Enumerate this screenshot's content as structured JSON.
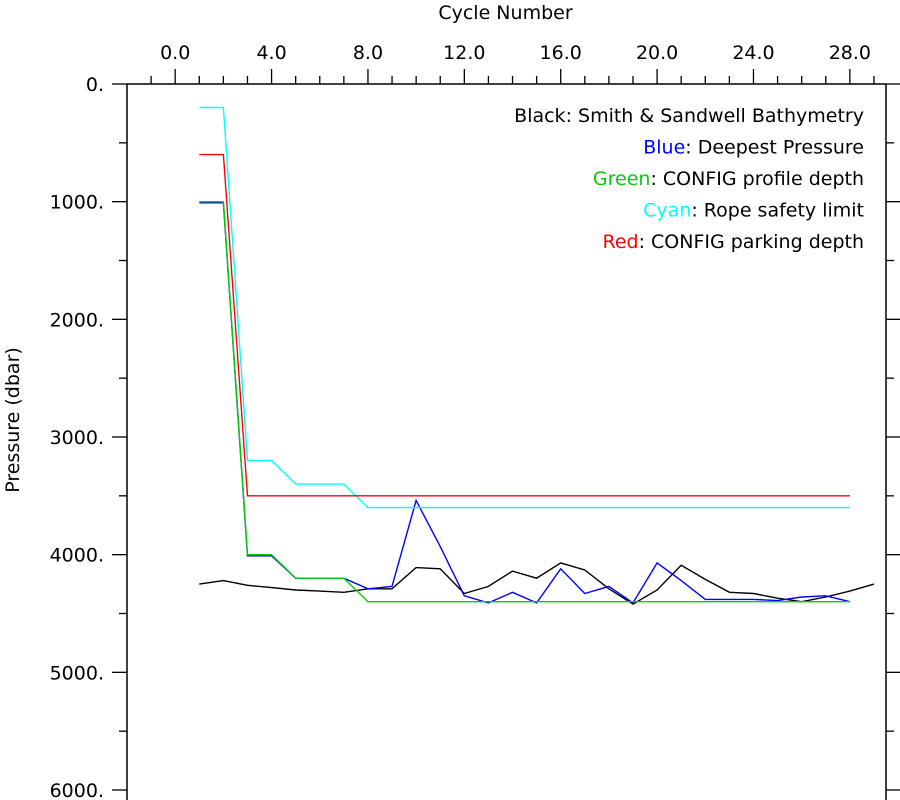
{
  "chart_data": {
    "type": "line",
    "xlabel": "Cycle Number",
    "ylabel": "Pressure (dbar)",
    "xlim": [
      -2.0,
      29.5
    ],
    "ylim": [
      0,
      6000
    ],
    "y_inverted": true,
    "x_ticks": [
      0,
      4,
      8,
      12,
      16,
      20,
      24,
      28
    ],
    "x_tick_labels": [
      "0.0",
      "4.0",
      "8.0",
      "12.0",
      "16.0",
      "20.0",
      "24.0",
      "28.0"
    ],
    "y_ticks": [
      0,
      1000,
      2000,
      3000,
      4000,
      5000,
      6000
    ],
    "y_tick_labels": [
      "0.",
      "1000.",
      "2000.",
      "3000.",
      "4000.",
      "5000.",
      "6000."
    ],
    "legend_position": "top-right",
    "legend": [
      {
        "color_word": "Black",
        "rest": ": Smith & Sandwell Bathymetry",
        "color": "#000000"
      },
      {
        "color_word": "Blue",
        "rest": ": Deepest Pressure",
        "color": "#0000ff"
      },
      {
        "color_word": "Green",
        "rest": ": CONFIG profile depth",
        "color": "#00d000"
      },
      {
        "color_word": "Cyan",
        "rest": ": Rope safety limit",
        "color": "#00ffff"
      },
      {
        "color_word": "Red",
        "rest": ": CONFIG parking depth",
        "color": "#ff0000"
      }
    ],
    "series": [
      {
        "color": "#000000",
        "x": [
          1,
          2,
          3,
          4,
          5,
          6,
          7,
          8,
          9,
          10,
          11,
          12,
          13,
          14,
          15,
          16,
          17,
          18,
          19,
          20,
          21,
          22,
          23,
          24,
          25,
          26,
          27,
          28,
          29
        ],
        "y": [
          4250,
          4220,
          4260,
          4280,
          4300,
          4310,
          4320,
          4290,
          4290,
          4110,
          4120,
          4330,
          4270,
          4140,
          4200,
          4070,
          4130,
          4290,
          4420,
          4300,
          4090,
          4210,
          4320,
          4330,
          4370,
          4400,
          4360,
          4310,
          4250
        ]
      },
      {
        "color": "#0000ff",
        "x": [
          1,
          2,
          3,
          4,
          5,
          6,
          7,
          8,
          9,
          10,
          11,
          12,
          13,
          14,
          15,
          16,
          17,
          18,
          19,
          20,
          21,
          22,
          23,
          24,
          25,
          26,
          27,
          28
        ],
        "y": [
          1010,
          1010,
          4010,
          4010,
          4200,
          4200,
          4200,
          4290,
          4270,
          3540,
          3930,
          4350,
          4410,
          4320,
          4410,
          4120,
          4330,
          4270,
          4410,
          4070,
          4220,
          4380,
          4380,
          4380,
          4390,
          4360,
          4350,
          4400
        ]
      },
      {
        "color": "#00d000",
        "x": [
          1,
          2,
          3,
          4,
          5,
          6,
          7,
          8,
          9,
          10,
          11,
          12,
          13,
          14,
          15,
          16,
          17,
          18,
          19,
          20,
          21,
          22,
          23,
          24,
          25,
          26,
          27,
          28
        ],
        "y": [
          1000,
          1000,
          4000,
          4000,
          4200,
          4200,
          4200,
          4400,
          4400,
          4400,
          4400,
          4400,
          4400,
          4400,
          4400,
          4400,
          4400,
          4400,
          4400,
          4400,
          4400,
          4400,
          4400,
          4400,
          4400,
          4400,
          4400,
          4400
        ]
      },
      {
        "color": "#00ffff",
        "x": [
          1,
          2,
          3,
          4,
          5,
          6,
          7,
          8,
          9,
          10,
          11,
          12,
          13,
          14,
          15,
          16,
          17,
          18,
          19,
          20,
          21,
          22,
          23,
          24,
          25,
          26,
          27,
          28
        ],
        "y": [
          200,
          200,
          3200,
          3200,
          3400,
          3400,
          3400,
          3600,
          3600,
          3600,
          3600,
          3600,
          3600,
          3600,
          3600,
          3600,
          3600,
          3600,
          3600,
          3600,
          3600,
          3600,
          3600,
          3600,
          3600,
          3600,
          3600,
          3600
        ]
      },
      {
        "color": "#ff0000",
        "x": [
          1,
          2,
          3,
          4,
          5,
          6,
          7,
          8,
          9,
          10,
          11,
          12,
          13,
          14,
          15,
          16,
          17,
          18,
          19,
          20,
          21,
          22,
          23,
          24,
          25,
          26,
          27,
          28
        ],
        "y": [
          600,
          600,
          3500,
          3500,
          3500,
          3500,
          3500,
          3500,
          3500,
          3500,
          3500,
          3500,
          3500,
          3500,
          3500,
          3500,
          3500,
          3500,
          3500,
          3500,
          3500,
          3500,
          3500,
          3500,
          3500,
          3500,
          3500,
          3500
        ]
      }
    ]
  }
}
